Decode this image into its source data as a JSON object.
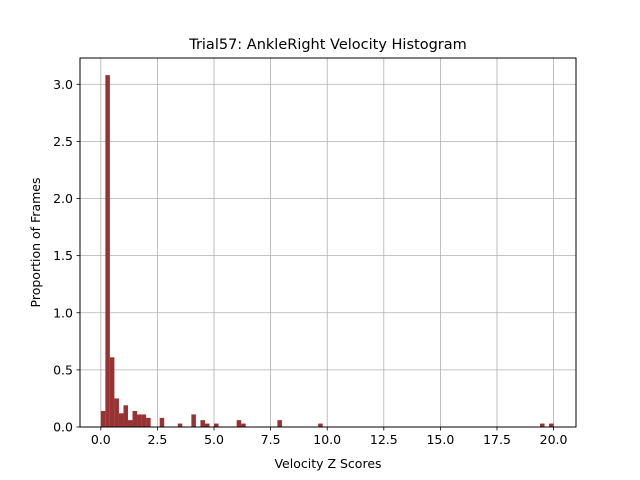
{
  "chart_data": {
    "type": "bar",
    "title": "Trial57: AnkleRight Velocity Histogram",
    "xlabel": "Velocity Z Scores",
    "ylabel": "Proportion of Frames",
    "xlim": [
      -0.92,
      20.99
    ],
    "ylim": [
      0,
      3.23
    ],
    "xticks": [
      0.0,
      2.5,
      5.0,
      7.5,
      10.0,
      12.5,
      15.0,
      17.5,
      20.0
    ],
    "xtick_labels": [
      "0.0",
      "2.5",
      "5.0",
      "7.5",
      "10.0",
      "12.5",
      "15.0",
      "17.5",
      "20.0"
    ],
    "yticks": [
      0.0,
      0.5,
      1.0,
      1.5,
      2.0,
      2.5,
      3.0
    ],
    "ytick_labels": [
      "0.0",
      "0.5",
      "1.0",
      "1.5",
      "2.0",
      "2.5",
      "3.0"
    ],
    "grid": true,
    "bar_color": "#993333",
    "bin_width": 0.2,
    "bins": [
      {
        "x": 0.1,
        "value": 0.14
      },
      {
        "x": 0.3,
        "value": 3.08
      },
      {
        "x": 0.5,
        "value": 0.61
      },
      {
        "x": 0.7,
        "value": 0.25
      },
      {
        "x": 0.9,
        "value": 0.12
      },
      {
        "x": 1.1,
        "value": 0.19
      },
      {
        "x": 1.3,
        "value": 0.06
      },
      {
        "x": 1.5,
        "value": 0.14
      },
      {
        "x": 1.7,
        "value": 0.11
      },
      {
        "x": 1.9,
        "value": 0.11
      },
      {
        "x": 2.1,
        "value": 0.08
      },
      {
        "x": 2.7,
        "value": 0.08
      },
      {
        "x": 3.5,
        "value": 0.03
      },
      {
        "x": 4.1,
        "value": 0.11
      },
      {
        "x": 4.5,
        "value": 0.06
      },
      {
        "x": 4.7,
        "value": 0.03
      },
      {
        "x": 5.1,
        "value": 0.03
      },
      {
        "x": 6.1,
        "value": 0.06
      },
      {
        "x": 6.3,
        "value": 0.03
      },
      {
        "x": 7.9,
        "value": 0.06
      },
      {
        "x": 9.7,
        "value": 0.03
      },
      {
        "x": 19.5,
        "value": 0.03
      },
      {
        "x": 19.9,
        "value": 0.03
      }
    ]
  }
}
